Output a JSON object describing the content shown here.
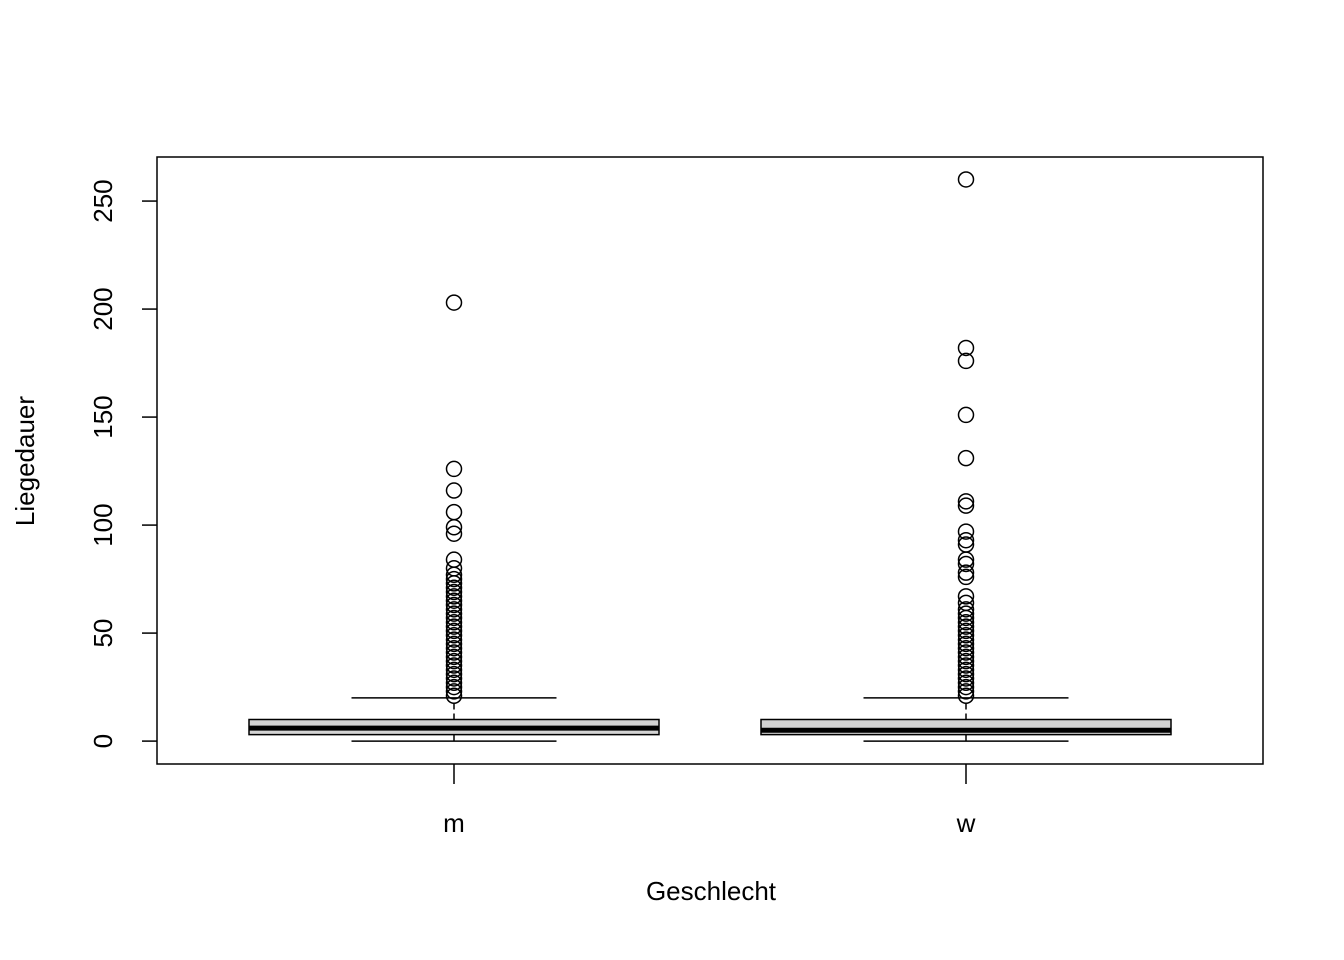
{
  "chart_data": {
    "type": "boxplot",
    "x_label": "Geschlecht",
    "y_label": "Liegedauer",
    "categories": [
      "m",
      "w"
    ],
    "ylim": [
      -10.6,
      270.4
    ],
    "yticks": [
      0,
      50,
      100,
      150,
      200,
      250
    ],
    "box_color": "#d3d3d3",
    "boxes": [
      {
        "min": 0,
        "q1": 3,
        "median": 6,
        "q3": 10,
        "max": 20,
        "outliers": [
          203,
          126,
          116,
          106,
          99,
          96,
          84,
          80,
          77,
          75,
          73,
          71,
          69,
          67,
          65,
          63,
          61,
          59,
          57,
          55,
          53,
          51,
          49,
          47,
          45,
          43,
          41,
          39,
          37,
          35,
          33,
          31,
          29,
          27,
          25,
          23,
          21
        ]
      },
      {
        "min": 0,
        "q1": 3,
        "median": 5,
        "q3": 10,
        "max": 20,
        "outliers": [
          260,
          182,
          176,
          151,
          131,
          111,
          109,
          97,
          93,
          91,
          84,
          82,
          78,
          76,
          67,
          64,
          61,
          59,
          57,
          55,
          53,
          51,
          49,
          47,
          45,
          43,
          41,
          39,
          37,
          35,
          33,
          31,
          29,
          27,
          25,
          23,
          21
        ]
      }
    ]
  }
}
